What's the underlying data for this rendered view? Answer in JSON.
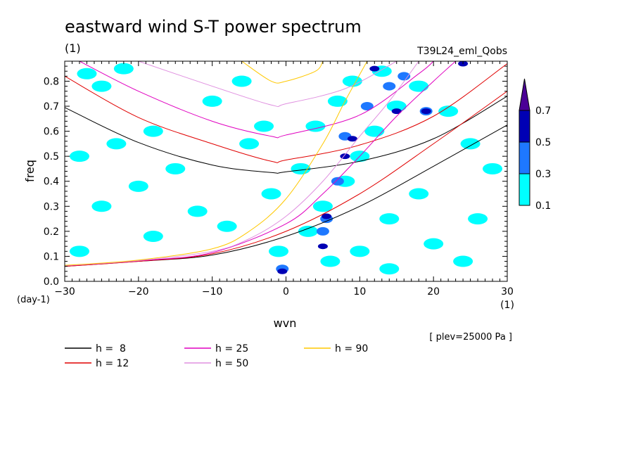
{
  "chart_data": {
    "type": "heatmap",
    "title": "eastward wind S-T power spectrum",
    "subtitle_left": "(1)",
    "subtitle_right": "T39L24_eml_Qobs",
    "xlabel": "wvn",
    "ylabel": "freq",
    "x_unit": "(1)",
    "y_unit": "(day-1)",
    "xlim": [
      -30,
      30
    ],
    "ylim": [
      0,
      0.88
    ],
    "x_ticks": [
      -30,
      -20,
      -10,
      0,
      10,
      20,
      30
    ],
    "y_ticks": [
      0.0,
      0.1,
      0.2,
      0.3,
      0.4,
      0.5,
      0.6,
      0.7,
      0.8
    ],
    "annotation": "[ plev=25000 Pa ]",
    "colorbar": {
      "levels": [
        0.1,
        0.3,
        0.5,
        0.7
      ],
      "labels": [
        "0.1",
        "0.3",
        "0.5",
        "0.7"
      ],
      "colors": [
        "#00ffff",
        "#1e78ff",
        "#0000b4",
        "#4b0096"
      ]
    },
    "dispersion_curves": [
      {
        "label": "h =  8",
        "h": 8,
        "color": "#000000",
        "points": [
          [
            -30,
            0.695
          ],
          [
            -20,
            0.555
          ],
          [
            -10,
            0.465
          ],
          [
            -2,
            0.435
          ],
          [
            0,
            0.438
          ],
          [
            10,
            0.48
          ],
          [
            20,
            0.57
          ],
          [
            30,
            0.74
          ]
        ]
      },
      {
        "label": "h = 12",
        "h": 12,
        "color": "#e00000",
        "points": [
          [
            -30,
            0.82
          ],
          [
            -20,
            0.655
          ],
          [
            -10,
            0.55
          ],
          [
            -2,
            0.48
          ],
          [
            0,
            0.485
          ],
          [
            10,
            0.545
          ],
          [
            20,
            0.66
          ],
          [
            30,
            0.87
          ]
        ]
      },
      {
        "label": "h = 25",
        "h": 25,
        "color": "#e000c0",
        "points": [
          [
            -28,
            0.88
          ],
          [
            -20,
            0.76
          ],
          [
            -10,
            0.64
          ],
          [
            -2,
            0.58
          ],
          [
            0,
            0.585
          ],
          [
            10,
            0.665
          ],
          [
            18,
            0.83
          ],
          [
            20,
            0.88
          ]
        ]
      },
      {
        "label": "h = 50",
        "h": 50,
        "color": "#e090e0",
        "points": [
          [
            -20,
            0.88
          ],
          [
            -10,
            0.78
          ],
          [
            -2,
            0.705
          ],
          [
            0,
            0.71
          ],
          [
            8,
            0.77
          ],
          [
            15,
            0.88
          ]
        ]
      },
      {
        "label": "h = 90",
        "h": 90,
        "color": "#ffc800",
        "points": [
          [
            -6,
            0.88
          ],
          [
            -2,
            0.8
          ],
          [
            0,
            0.8
          ],
          [
            4,
            0.84
          ],
          [
            5,
            0.88
          ]
        ]
      },
      {
        "label": "h =  8 (Kelvin)",
        "h": 8,
        "color": "#000000",
        "points": [
          [
            -30,
            0.06
          ],
          [
            -20,
            0.08
          ],
          [
            -10,
            0.105
          ],
          [
            0,
            0.18
          ],
          [
            10,
            0.3
          ],
          [
            20,
            0.46
          ],
          [
            30,
            0.625
          ]
        ]
      },
      {
        "label": "h = 12 (Kelvin)",
        "h": 12,
        "color": "#e00000",
        "points": [
          [
            -30,
            0.06
          ],
          [
            -20,
            0.08
          ],
          [
            -10,
            0.11
          ],
          [
            0,
            0.2
          ],
          [
            10,
            0.35
          ],
          [
            20,
            0.55
          ],
          [
            30,
            0.76
          ]
        ]
      },
      {
        "label": "h = 25 (Kelvin)",
        "h": 25,
        "color": "#e000c0",
        "points": [
          [
            -30,
            0.062
          ],
          [
            -20,
            0.082
          ],
          [
            -10,
            0.115
          ],
          [
            0,
            0.23
          ],
          [
            5,
            0.35
          ],
          [
            10,
            0.5
          ],
          [
            15,
            0.66
          ],
          [
            20,
            0.8
          ],
          [
            23,
            0.88
          ]
        ]
      },
      {
        "label": "h = 50 (Kelvin)",
        "h": 50,
        "color": "#e090e0",
        "points": [
          [
            -30,
            0.063
          ],
          [
            -20,
            0.083
          ],
          [
            -10,
            0.12
          ],
          [
            -5,
            0.17
          ],
          [
            0,
            0.26
          ],
          [
            5,
            0.4
          ],
          [
            10,
            0.58
          ],
          [
            14,
            0.72
          ],
          [
            18,
            0.88
          ]
        ]
      },
      {
        "label": "h = 90 (Kelvin)",
        "h": 90,
        "color": "#ffc800",
        "points": [
          [
            -30,
            0.064
          ],
          [
            -20,
            0.085
          ],
          [
            -10,
            0.13
          ],
          [
            -5,
            0.2
          ],
          [
            0,
            0.33
          ],
          [
            5,
            0.55
          ],
          [
            8,
            0.72
          ],
          [
            11,
            0.88
          ]
        ]
      }
    ],
    "legend": [
      {
        "label": "h =  8",
        "color": "#000000"
      },
      {
        "label": "h = 12",
        "color": "#e00000"
      },
      {
        "label": "h = 25",
        "color": "#e000c0"
      },
      {
        "label": "h = 50",
        "color": "#e090e0"
      },
      {
        "label": "h = 90",
        "color": "#ffc800"
      }
    ],
    "power_patches": [
      {
        "x": -27,
        "y": 0.83,
        "level": 0.1
      },
      {
        "x": -25,
        "y": 0.78,
        "level": 0.1
      },
      {
        "x": -22,
        "y": 0.85,
        "level": 0.1
      },
      {
        "x": -28,
        "y": 0.5,
        "level": 0.1
      },
      {
        "x": -23,
        "y": 0.55,
        "level": 0.1
      },
      {
        "x": -18,
        "y": 0.6,
        "level": 0.1
      },
      {
        "x": -15,
        "y": 0.45,
        "level": 0.1
      },
      {
        "x": -20,
        "y": 0.38,
        "level": 0.1
      },
      {
        "x": -25,
        "y": 0.3,
        "level": 0.1
      },
      {
        "x": -12,
        "y": 0.28,
        "level": 0.1
      },
      {
        "x": -8,
        "y": 0.22,
        "level": 0.1
      },
      {
        "x": -18,
        "y": 0.18,
        "level": 0.1
      },
      {
        "x": -5,
        "y": 0.55,
        "level": 0.1
      },
      {
        "x": -3,
        "y": 0.62,
        "level": 0.1
      },
      {
        "x": -10,
        "y": 0.72,
        "level": 0.1
      },
      {
        "x": -6,
        "y": 0.8,
        "level": 0.1
      },
      {
        "x": -2,
        "y": 0.35,
        "level": 0.1
      },
      {
        "x": -1,
        "y": 0.12,
        "level": 0.1
      },
      {
        "x": 3,
        "y": 0.2,
        "level": 0.1
      },
      {
        "x": 5,
        "y": 0.3,
        "level": 0.1
      },
      {
        "x": 8,
        "y": 0.4,
        "level": 0.1
      },
      {
        "x": 10,
        "y": 0.5,
        "level": 0.1
      },
      {
        "x": 12,
        "y": 0.6,
        "level": 0.1
      },
      {
        "x": 15,
        "y": 0.7,
        "level": 0.1
      },
      {
        "x": 18,
        "y": 0.78,
        "level": 0.1
      },
      {
        "x": 22,
        "y": 0.68,
        "level": 0.1
      },
      {
        "x": 25,
        "y": 0.55,
        "level": 0.1
      },
      {
        "x": 28,
        "y": 0.45,
        "level": 0.1
      },
      {
        "x": 18,
        "y": 0.35,
        "level": 0.1
      },
      {
        "x": 14,
        "y": 0.25,
        "level": 0.1
      },
      {
        "x": 20,
        "y": 0.15,
        "level": 0.1
      },
      {
        "x": 26,
        "y": 0.25,
        "level": 0.1
      },
      {
        "x": 10,
        "y": 0.12,
        "level": 0.1
      },
      {
        "x": 6,
        "y": 0.08,
        "level": 0.1
      },
      {
        "x": 14,
        "y": 0.05,
        "level": 0.1
      },
      {
        "x": 24,
        "y": 0.08,
        "level": 0.1
      },
      {
        "x": -28,
        "y": 0.12,
        "level": 0.1
      },
      {
        "x": 2,
        "y": 0.45,
        "level": 0.1
      },
      {
        "x": 4,
        "y": 0.62,
        "level": 0.1
      },
      {
        "x": 7,
        "y": 0.72,
        "level": 0.1
      },
      {
        "x": 9,
        "y": 0.8,
        "level": 0.1
      },
      {
        "x": 13,
        "y": 0.84,
        "level": 0.1
      },
      {
        "x": -0.5,
        "y": 0.05,
        "level": 0.3
      },
      {
        "x": 5.5,
        "y": 0.25,
        "level": 0.3
      },
      {
        "x": 5,
        "y": 0.2,
        "level": 0.3
      },
      {
        "x": 7,
        "y": 0.4,
        "level": 0.3
      },
      {
        "x": 8,
        "y": 0.58,
        "level": 0.3
      },
      {
        "x": 11,
        "y": 0.7,
        "level": 0.3
      },
      {
        "x": 16,
        "y": 0.82,
        "level": 0.3
      },
      {
        "x": 19,
        "y": 0.68,
        "level": 0.3
      },
      {
        "x": 14,
        "y": 0.78,
        "level": 0.3
      },
      {
        "x": 5,
        "y": 0.14,
        "level": 0.5
      },
      {
        "x": 5.5,
        "y": 0.26,
        "level": 0.5
      },
      {
        "x": -0.5,
        "y": 0.04,
        "level": 0.5
      },
      {
        "x": 12,
        "y": 0.85,
        "level": 0.5
      },
      {
        "x": 19,
        "y": 0.68,
        "level": 0.5
      },
      {
        "x": 15,
        "y": 0.68,
        "level": 0.5
      },
      {
        "x": 9,
        "y": 0.57,
        "level": 0.5
      },
      {
        "x": 8,
        "y": 0.5,
        "level": 0.5
      },
      {
        "x": 24,
        "y": 0.87,
        "level": 0.5
      }
    ]
  }
}
